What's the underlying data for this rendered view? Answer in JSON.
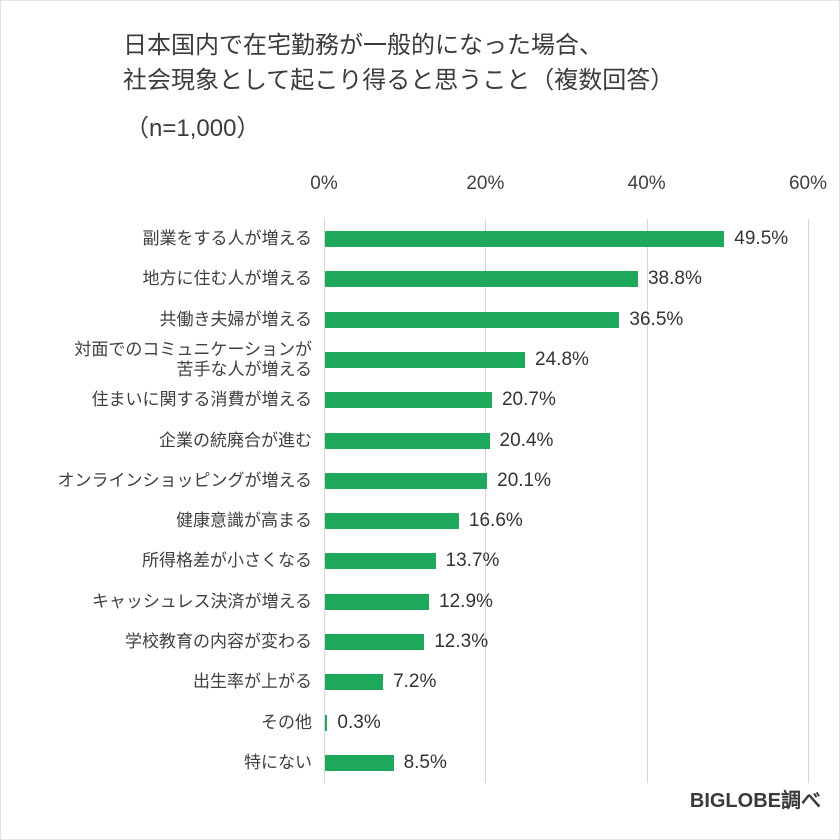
{
  "header": {
    "title": "日本国内で在宅勤務が一般的になった場合、\n社会現象として起こり得ると思うこと（複数回答）",
    "sample_size": "（n=1,000）"
  },
  "footer": {
    "source": "BIGLOBE調べ"
  },
  "colors": {
    "bar": "#1ea85c",
    "gridline": "#d6d6d6",
    "text": "#404040"
  },
  "chart_data": {
    "type": "bar",
    "orientation": "horizontal",
    "title": "日本国内で在宅勤務が一般的になった場合、社会現象として起こり得ると思うこと（複数回答）",
    "sample_size": "n=1,000",
    "categories": [
      "副業をする人が増える",
      "地方に住む人が増える",
      "共働き夫婦が増える",
      "対面でのコミュニケーションが\n苦手な人が増える",
      "住まいに関する消費が増える",
      "企業の統廃合が進む",
      "オンラインショッピングが増える",
      "健康意識が高まる",
      "所得格差が小さくなる",
      "キャッシュレス決済が増える",
      "学校教育の内容が変わる",
      "出生率が上がる",
      "その他",
      "特にない"
    ],
    "values": [
      49.5,
      38.8,
      36.5,
      24.8,
      20.7,
      20.4,
      20.1,
      16.6,
      13.7,
      12.9,
      12.3,
      7.2,
      0.3,
      8.5
    ],
    "value_labels": [
      "49.5%",
      "38.8%",
      "36.5%",
      "24.8%",
      "20.7%",
      "20.4%",
      "20.1%",
      "16.6%",
      "13.7%",
      "12.9%",
      "12.3%",
      "7.2%",
      "0.3%",
      "8.5%"
    ],
    "x_ticks": [
      0,
      20,
      40,
      60
    ],
    "x_tick_labels": [
      "0%",
      "20%",
      "40%",
      "60%"
    ],
    "xlim": [
      0,
      60
    ],
    "grid": true,
    "legend": false
  }
}
